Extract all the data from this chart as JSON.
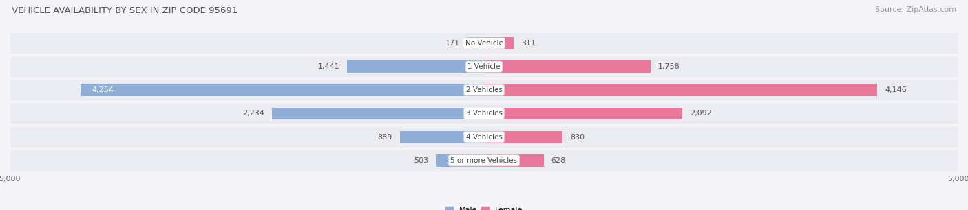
{
  "title": "VEHICLE AVAILABILITY BY SEX IN ZIP CODE 95691",
  "source": "Source: ZipAtlas.com",
  "categories": [
    "No Vehicle",
    "1 Vehicle",
    "2 Vehicles",
    "3 Vehicles",
    "4 Vehicles",
    "5 or more Vehicles"
  ],
  "male_values": [
    171,
    1441,
    4254,
    2234,
    889,
    503
  ],
  "female_values": [
    311,
    1758,
    4146,
    2092,
    830,
    628
  ],
  "male_color": "#91aed6",
  "female_color": "#e8799a",
  "male_label": "Male",
  "female_label": "Female",
  "xlim": 5000,
  "bar_height": 0.52,
  "row_bg_color": "#ebebf2",
  "fig_bg_color": "#f4f4f8",
  "title_fontsize": 9.5,
  "source_fontsize": 8,
  "value_fontsize": 8,
  "cat_label_fontsize": 7.5,
  "tick_fontsize": 8
}
